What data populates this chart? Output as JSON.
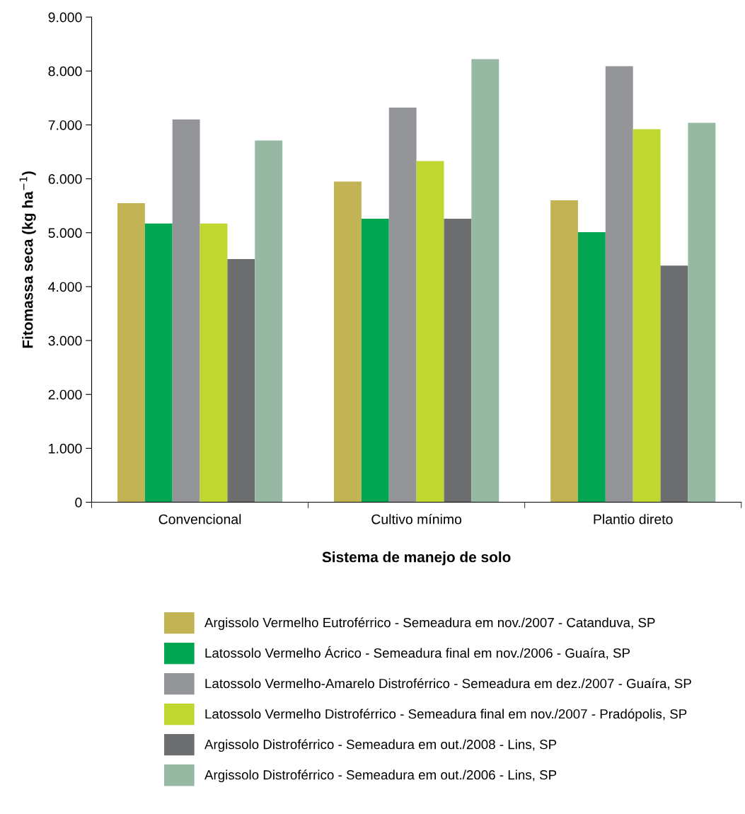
{
  "chart_data": {
    "type": "bar",
    "xlabel": "Sistema de manejo de solo",
    "ylabel": "Fitomassa seca (kg ha$^{−1}$)",
    "categories": [
      "Convencional",
      "Cultivo mínimo",
      "Plantio direto"
    ],
    "series": [
      {
        "name": "Argissolo Vermelho Eutroférrico - Semeadura em nov./2007 - Catanduva, SP",
        "color": "#c2b454",
        "values": [
          5550,
          5950,
          5600
        ]
      },
      {
        "name": "Latossolo Vermelho Ácrico - Semeadura final em nov./2006 - Guaíra, SP",
        "color": "#00a651",
        "values": [
          5170,
          5260,
          5010
        ]
      },
      {
        "name": "Latossolo Vermelho-Amarelo Distroférrico - Semeadura em dez./2007 - Guaíra, SP",
        "color": "#939598",
        "values": [
          7100,
          7320,
          8090
        ]
      },
      {
        "name": "Latossolo Vermelho Distroférrico - Semeadura final em nov./2007 - Pradópolis, SP",
        "color": "#bfd730",
        "values": [
          5170,
          6330,
          6920
        ]
      },
      {
        "name": "Argissolo Distroférrico - Semeadura em out./2008 - Lins, SP",
        "color": "#6d6e70",
        "values": [
          4510,
          5260,
          4390
        ]
      },
      {
        "name": "Argissolo Distroférrico - Semeadura em out./2006 - Lins, SP",
        "color": "#97b8a3",
        "values": [
          6710,
          8220,
          7040
        ]
      }
    ],
    "ylim": [
      0,
      9000
    ],
    "yticks": [
      0,
      {
        "value": 1000,
        "label": "1.000"
      },
      {
        "value": 2000,
        "label": "2.000"
      },
      {
        "value": 3000,
        "label": "3.000"
      },
      {
        "value": 4000,
        "label": "4.000"
      },
      {
        "value": 5000,
        "label": "5.000"
      },
      {
        "value": 6000,
        "label": "6.000"
      },
      {
        "value": 7000,
        "label": "7.000"
      },
      {
        "value": 8000,
        "label": "8.000"
      },
      {
        "value": 9000,
        "label": "9.000"
      }
    ],
    "legend": "bottom"
  }
}
